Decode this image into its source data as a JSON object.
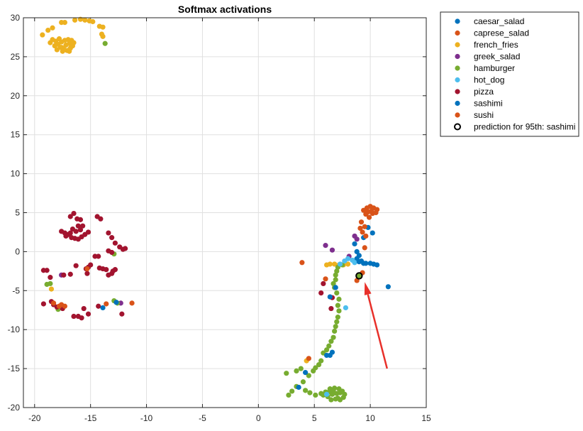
{
  "chart_data": {
    "type": "scatter",
    "title": "Softmax activations",
    "xlabel": "",
    "ylabel": "",
    "xlim": [
      -21,
      15
    ],
    "ylim": [
      -20,
      30
    ],
    "xticks": [
      -20,
      -15,
      -10,
      -5,
      0,
      5,
      10,
      15
    ],
    "yticks": [
      -20,
      -15,
      -10,
      -5,
      0,
      5,
      10,
      15,
      20,
      25,
      30
    ],
    "grid": true,
    "legend_position": "outside-top-right",
    "colors": {
      "caesar_salad": "#0072BD",
      "caprese_salad": "#D95319",
      "french_fries": "#EDB120",
      "greek_salad": "#7E2F8E",
      "hamburger": "#77AC30",
      "hot_dog": "#4DBEEE",
      "pizza": "#A2142F",
      "sashimi": "#0072BD",
      "sushi": "#D95319",
      "arrow": "#E8302A"
    },
    "legend": [
      "caesar_salad",
      "caprese_salad",
      "french_fries",
      "greek_salad",
      "hamburger",
      "hot_dog",
      "pizza",
      "sashimi",
      "sushi",
      "prediction for 95th: sashimi"
    ],
    "series": [
      {
        "name": "caesar_salad",
        "points": [
          [
            8.6,
            1.0
          ],
          [
            9.0,
            -0.5
          ],
          [
            9.2,
            -1.2
          ],
          [
            10.0,
            -1.5
          ],
          [
            10.3,
            -1.6
          ],
          [
            10.6,
            -1.7
          ],
          [
            9.6,
            -1.5
          ],
          [
            10.2,
            2.4
          ],
          [
            9.8,
            3.1
          ],
          [
            11.6,
            -4.5
          ],
          [
            9.4,
            1.8
          ],
          [
            8.8,
            -0.9
          ]
        ]
      },
      {
        "name": "caprese_salad",
        "points": [
          [
            9.4,
            5.3
          ],
          [
            9.7,
            5.6
          ],
          [
            10.0,
            5.8
          ],
          [
            10.3,
            5.6
          ],
          [
            10.6,
            5.4
          ],
          [
            9.6,
            4.8
          ],
          [
            9.9,
            4.4
          ],
          [
            10.2,
            4.9
          ],
          [
            10.5,
            5.0
          ],
          [
            9.2,
            3.8
          ],
          [
            9.5,
            3.2
          ],
          [
            9.3,
            2.5
          ],
          [
            9.6,
            2.0
          ],
          [
            9.1,
            3.0
          ],
          [
            10.1,
            5.2
          ],
          [
            9.8,
            5.1
          ],
          [
            9.5,
            0.5
          ],
          [
            3.9,
            -1.4
          ]
        ]
      },
      {
        "name": "french_fries",
        "points": [
          [
            -19.3,
            27.8
          ],
          [
            -18.8,
            28.4
          ],
          [
            -18.4,
            28.7
          ],
          [
            -17.6,
            29.4
          ],
          [
            -17.3,
            29.4
          ],
          [
            -16.4,
            29.7
          ],
          [
            -15.9,
            29.8
          ],
          [
            -15.5,
            29.7
          ],
          [
            -15.1,
            29.6
          ],
          [
            -14.8,
            29.5
          ],
          [
            -14.2,
            28.9
          ],
          [
            -13.9,
            28.8
          ],
          [
            -14.0,
            27.9
          ],
          [
            -13.9,
            27.6
          ],
          [
            -18.6,
            26.8
          ],
          [
            -18.4,
            27.2
          ],
          [
            -18.1,
            27.0
          ],
          [
            -17.9,
            26.6
          ],
          [
            -17.7,
            26.2
          ],
          [
            -17.4,
            26.0
          ],
          [
            -17.1,
            25.8
          ],
          [
            -16.8,
            26.1
          ],
          [
            -16.6,
            26.4
          ],
          [
            -16.5,
            26.8
          ],
          [
            -16.7,
            27.1
          ],
          [
            -17.0,
            27.2
          ],
          [
            -17.3,
            27.1
          ],
          [
            -17.6,
            26.9
          ],
          [
            -17.8,
            27.3
          ],
          [
            -18.2,
            26.4
          ],
          [
            -17.5,
            25.7
          ],
          [
            -16.9,
            25.7
          ],
          [
            -17.2,
            26.5
          ],
          [
            -17.6,
            26.2
          ],
          [
            -16.9,
            26.7
          ],
          [
            -18.0,
            25.9
          ],
          [
            8.0,
            -1.6
          ],
          [
            7.6,
            -1.7
          ],
          [
            7.2,
            -1.7
          ],
          [
            6.8,
            -1.6
          ],
          [
            6.4,
            -1.6
          ],
          [
            6.1,
            -1.7
          ],
          [
            4.3,
            -14.0
          ],
          [
            -18.5,
            -4.8
          ]
        ]
      },
      {
        "name": "greek_salad",
        "points": [
          [
            6.0,
            0.8
          ],
          [
            8.6,
            2.0
          ],
          [
            8.8,
            1.6
          ],
          [
            6.6,
            0.2
          ],
          [
            8.1,
            -0.6
          ],
          [
            -17.6,
            -3.0
          ],
          [
            -12.3,
            -6.6
          ]
        ]
      },
      {
        "name": "hamburger",
        "points": [
          [
            -13.7,
            26.7
          ],
          [
            7.5,
            -1.7
          ],
          [
            7.1,
            -2.0
          ],
          [
            7.0,
            -2.5
          ],
          [
            6.9,
            -3.0
          ],
          [
            6.9,
            -3.6
          ],
          [
            6.7,
            -4.1
          ],
          [
            6.8,
            -4.6
          ],
          [
            7.0,
            -5.3
          ],
          [
            7.2,
            -6.1
          ],
          [
            7.1,
            -6.9
          ],
          [
            7.2,
            -7.6
          ],
          [
            7.1,
            -8.4
          ],
          [
            7.0,
            -9.0
          ],
          [
            6.9,
            -9.6
          ],
          [
            6.8,
            -10.2
          ],
          [
            6.7,
            -11.0
          ],
          [
            6.5,
            -11.5
          ],
          [
            6.3,
            -12.1
          ],
          [
            6.1,
            -12.6
          ],
          [
            5.8,
            -13.0
          ],
          [
            5.6,
            -14.0
          ],
          [
            5.4,
            -14.5
          ],
          [
            5.1,
            -14.9
          ],
          [
            4.9,
            -15.3
          ],
          [
            4.5,
            -15.9
          ],
          [
            4.0,
            -16.7
          ],
          [
            3.4,
            -17.3
          ],
          [
            3.0,
            -17.9
          ],
          [
            2.7,
            -18.4
          ],
          [
            2.5,
            -15.6
          ],
          [
            3.4,
            -15.3
          ],
          [
            3.8,
            -15.0
          ],
          [
            4.2,
            -17.8
          ],
          [
            4.6,
            -18.1
          ],
          [
            5.1,
            -18.4
          ],
          [
            5.6,
            -18.2
          ],
          [
            6.0,
            -18.0
          ],
          [
            6.4,
            -17.6
          ],
          [
            6.8,
            -17.5
          ],
          [
            7.2,
            -17.6
          ],
          [
            7.5,
            -17.9
          ],
          [
            7.7,
            -18.3
          ],
          [
            7.6,
            -18.7
          ],
          [
            7.3,
            -19.0
          ],
          [
            6.9,
            -18.9
          ],
          [
            6.5,
            -19.0
          ],
          [
            6.2,
            -18.6
          ],
          [
            6.6,
            -18.3
          ],
          [
            7.0,
            -18.2
          ],
          [
            7.3,
            -18.1
          ],
          [
            6.3,
            -18.0
          ],
          [
            7.1,
            -18.8
          ],
          [
            6.7,
            -17.9
          ],
          [
            5.8,
            -18.4
          ],
          [
            -12.9,
            -6.3
          ],
          [
            -12.6,
            -6.6
          ],
          [
            -12.9,
            -0.3
          ],
          [
            -18.6,
            -4.1
          ],
          [
            -18.9,
            -4.2
          ],
          [
            -17.9,
            -7.4
          ]
        ]
      },
      {
        "name": "hot_dog",
        "points": [
          [
            7.7,
            -1.2
          ],
          [
            8.0,
            -0.9
          ],
          [
            8.4,
            -1.1
          ],
          [
            8.6,
            -1.4
          ],
          [
            7.3,
            -1.6
          ],
          [
            7.8,
            -7.2
          ],
          [
            6.1,
            -18.3
          ]
        ]
      },
      {
        "name": "pizza",
        "points": [
          [
            -16.8,
            4.5
          ],
          [
            -16.5,
            4.9
          ],
          [
            -16.2,
            4.2
          ],
          [
            -15.9,
            4.1
          ],
          [
            -14.4,
            4.5
          ],
          [
            -14.1,
            4.2
          ],
          [
            -17.6,
            2.6
          ],
          [
            -17.3,
            2.4
          ],
          [
            -17.0,
            2.2
          ],
          [
            -16.7,
            1.8
          ],
          [
            -16.4,
            1.7
          ],
          [
            -16.1,
            1.6
          ],
          [
            -15.8,
            1.9
          ],
          [
            -15.5,
            2.2
          ],
          [
            -15.2,
            2.5
          ],
          [
            -15.7,
            3.3
          ],
          [
            -16.1,
            3.3
          ],
          [
            -16.6,
            2.9
          ],
          [
            -17.2,
            2.0
          ],
          [
            -16.8,
            2.4
          ],
          [
            -16.3,
            2.6
          ],
          [
            -15.9,
            2.8
          ],
          [
            -13.4,
            2.4
          ],
          [
            -13.1,
            1.8
          ],
          [
            -12.8,
            1.1
          ],
          [
            -12.4,
            0.6
          ],
          [
            -12.1,
            0.3
          ],
          [
            -11.9,
            0.4
          ],
          [
            -13.4,
            0.1
          ],
          [
            -13.1,
            -0.1
          ],
          [
            -14.3,
            -0.6
          ],
          [
            -14.6,
            -0.6
          ],
          [
            -15.0,
            -1.7
          ],
          [
            -15.2,
            -2.0
          ],
          [
            -14.2,
            -2.1
          ],
          [
            -13.9,
            -2.2
          ],
          [
            -13.6,
            -2.3
          ],
          [
            -13.0,
            -2.5
          ],
          [
            -12.8,
            -2.3
          ],
          [
            -13.1,
            -2.8
          ],
          [
            -13.4,
            -3.0
          ],
          [
            -16.3,
            -1.8
          ],
          [
            -15.3,
            -2.8
          ],
          [
            -16.8,
            -2.9
          ],
          [
            -17.4,
            -3.0
          ],
          [
            -18.6,
            -3.3
          ],
          [
            -19.2,
            -2.4
          ],
          [
            -18.9,
            -2.4
          ],
          [
            -15.4,
            -2.2
          ],
          [
            -14.3,
            -7.0
          ],
          [
            -15.6,
            -7.3
          ],
          [
            -15.2,
            -8.0
          ],
          [
            -15.8,
            -8.5
          ],
          [
            -16.1,
            -8.3
          ],
          [
            -16.5,
            -8.3
          ],
          [
            -17.5,
            -7.3
          ],
          [
            -18.0,
            -7.1
          ],
          [
            -18.3,
            -6.8
          ],
          [
            -18.5,
            -6.4
          ],
          [
            -19.2,
            -6.7
          ],
          [
            -12.2,
            -8.0
          ],
          [
            5.8,
            -4.1
          ],
          [
            5.6,
            -5.3
          ],
          [
            6.6,
            -5.9
          ],
          [
            6.5,
            -7.3
          ]
        ]
      },
      {
        "name": "sashimi",
        "points": [
          [
            8.8,
            0.0
          ],
          [
            9.4,
            -1.5
          ],
          [
            9.0,
            -1.3
          ],
          [
            6.9,
            -4.6
          ],
          [
            6.4,
            -5.8
          ],
          [
            6.1,
            -13.3
          ],
          [
            6.4,
            -13.3
          ],
          [
            6.6,
            -12.9
          ],
          [
            4.2,
            -15.5
          ],
          [
            3.6,
            -17.4
          ],
          [
            -13.9,
            -7.2
          ],
          [
            -12.7,
            -6.5
          ]
        ]
      },
      {
        "name": "sushi",
        "points": [
          [
            6.0,
            -3.5
          ],
          [
            9.3,
            -2.7
          ],
          [
            8.8,
            -3.7
          ],
          [
            4.5,
            -13.7
          ],
          [
            -18.3,
            -6.6
          ],
          [
            -17.6,
            -6.8
          ],
          [
            -17.3,
            -7.0
          ],
          [
            -17.8,
            -7.0
          ],
          [
            -13.6,
            -6.7
          ],
          [
            -11.3,
            -6.6
          ],
          [
            -15.3,
            -2.2
          ]
        ]
      }
    ],
    "prediction": {
      "label": "prediction for 95th: sashimi",
      "x": 9.0,
      "y": -3.1
    },
    "arrow": {
      "from": [
        11.5,
        -15.0
      ],
      "to": [
        9.5,
        -3.9
      ]
    }
  }
}
